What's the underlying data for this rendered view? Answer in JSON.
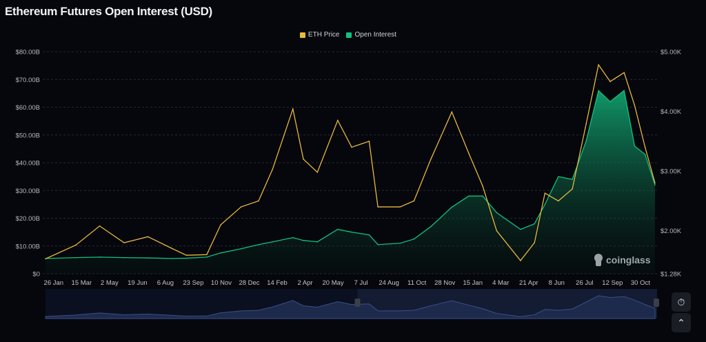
{
  "title": "Ethereum Futures Open Interest (USD)",
  "colors": {
    "price": "#e9b93c",
    "oi": "#12c07f",
    "background": "#05070c",
    "navigator": "#2a3a6a"
  },
  "watermark": "coinglass",
  "buttons": [
    {
      "icon": "clock-reset-icon"
    },
    {
      "icon": "chevron-up-icon"
    }
  ],
  "chart_data": {
    "type": "line",
    "title": "Ethereum Futures Open Interest (USD)",
    "legend": {
      "placement": "top-center",
      "entries": [
        "ETH Price",
        "Open Interest"
      ]
    },
    "grid": true,
    "x_ticks": [
      "26 Jan",
      "15 Mar",
      "2 May",
      "19 Jun",
      "6 Aug",
      "23 Sep",
      "10 Nov",
      "28 Dec",
      "14 Feb",
      "2 Apr",
      "20 May",
      "7 Jul",
      "24 Aug",
      "11 Oct",
      "28 Nov",
      "15 Jan",
      "4 Mar",
      "21 Apr",
      "8 Jun",
      "26 Jul",
      "12 Sep",
      "30 Oct"
    ],
    "x_tick_dates": [
      "2023-01-26",
      "2023-03-15",
      "2023-05-02",
      "2023-06-19",
      "2023-08-06",
      "2023-09-23",
      "2023-11-10",
      "2023-12-28",
      "2024-02-14",
      "2024-04-02",
      "2024-05-20",
      "2024-07-07",
      "2024-08-24",
      "2024-10-11",
      "2024-11-28",
      "2025-01-15",
      "2025-03-04",
      "2025-04-21",
      "2025-06-08",
      "2025-07-26",
      "2025-09-12",
      "2025-10-30"
    ],
    "xlim": [
      "2023-01-12",
      "2025-11-24"
    ],
    "y_left": {
      "label": "",
      "ticks": [
        "$0",
        "$10.00B",
        "$20.00B",
        "$30.00B",
        "$40.00B",
        "$50.00B",
        "$60.00B",
        "$70.00B",
        "$80.00B"
      ],
      "ylim": [
        0,
        80
      ],
      "unit": "B USD"
    },
    "y_right": {
      "label": "",
      "ticks": [
        "$1.28K",
        "$2.00K",
        "$3.00K",
        "$4.00K",
        "$5.00K"
      ],
      "tick_values": [
        1280,
        2000,
        3000,
        4000,
        5000
      ],
      "ylim": [
        1280,
        5000
      ]
    },
    "x": [
      "2023-01-12",
      "2023-03-05",
      "2023-04-15",
      "2023-05-27",
      "2023-07-07",
      "2023-08-18",
      "2023-09-11",
      "2023-10-16",
      "2023-11-09",
      "2023-12-14",
      "2024-01-13",
      "2024-02-06",
      "2024-03-12",
      "2024-03-30",
      "2024-04-23",
      "2024-05-28",
      "2024-06-21",
      "2024-07-21",
      "2024-08-05",
      "2024-09-12",
      "2024-10-06",
      "2024-11-04",
      "2024-12-10",
      "2025-01-08",
      "2025-02-01",
      "2025-02-25",
      "2025-04-07",
      "2025-05-01",
      "2025-05-19",
      "2025-06-11",
      "2025-07-05",
      "2025-07-29",
      "2025-08-19",
      "2025-09-08",
      "2025-10-02",
      "2025-10-20",
      "2025-11-07",
      "2025-11-24"
    ],
    "series": [
      {
        "name": "ETH Price",
        "axis": "right",
        "values": [
          1530,
          1760,
          2080,
          1800,
          1900,
          1700,
          1590,
          1600,
          2100,
          2400,
          2500,
          3030,
          4040,
          3200,
          2980,
          3850,
          3400,
          3500,
          2400,
          2400,
          2500,
          3200,
          3990,
          3300,
          2750,
          2000,
          1500,
          1800,
          2630,
          2500,
          2700,
          3800,
          4780,
          4500,
          4650,
          4100,
          3400,
          2800
        ]
      },
      {
        "name": "Open Interest",
        "axis": "left",
        "values": [
          5.5,
          5.8,
          6,
          5.8,
          5.7,
          5.5,
          5.6,
          6,
          7.5,
          9,
          10.5,
          11.5,
          13,
          12,
          11.5,
          16,
          15,
          14,
          10.5,
          11,
          12.5,
          17,
          24,
          28,
          28,
          22,
          16,
          18,
          25,
          35,
          34,
          48,
          66,
          62,
          66,
          46,
          43,
          32
        ]
      }
    ],
    "navigator": {
      "selected_range": [
        "2024-07-01",
        "2025-11-24"
      ]
    }
  }
}
